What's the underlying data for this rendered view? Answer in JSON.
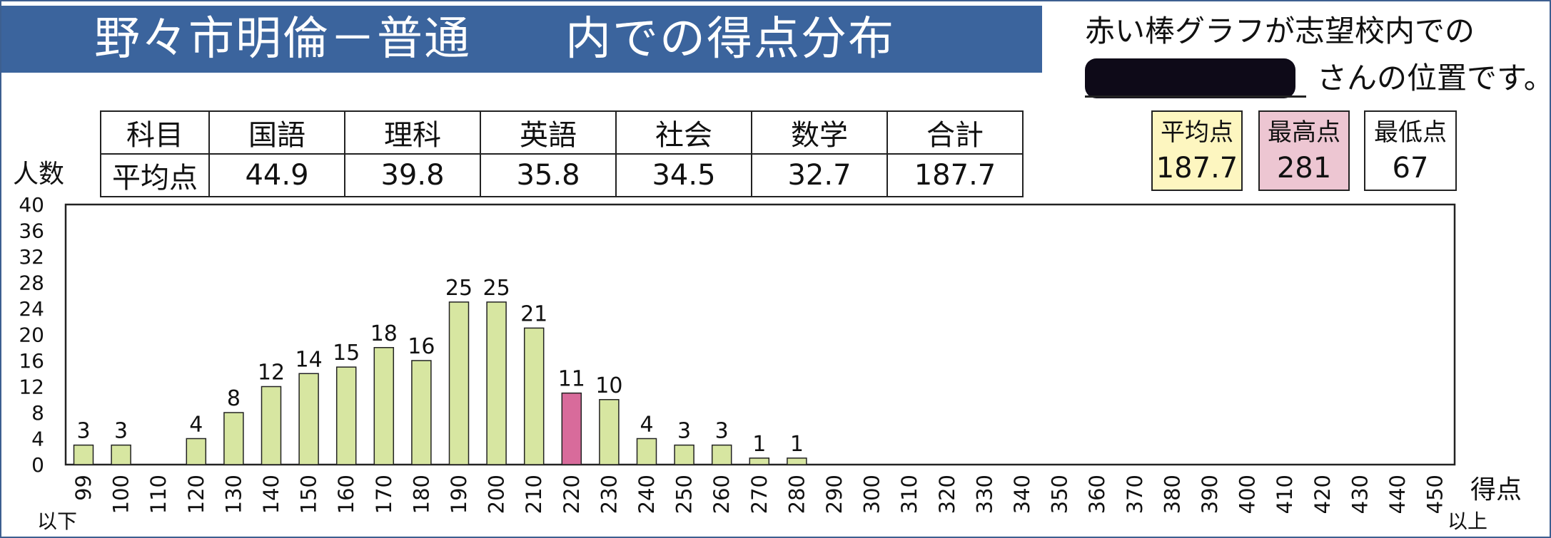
{
  "header": {
    "title": "野々市明倫－普通　　内での得点分布",
    "note_line1": "赤い棒グラフが志望校内での",
    "note_line2": "さんの位置です。"
  },
  "score_table": {
    "headers": [
      "科目",
      "国語",
      "理科",
      "英語",
      "社会",
      "数学",
      "合計"
    ],
    "row": [
      "平均点",
      "44.9",
      "39.8",
      "35.8",
      "34.5",
      "32.7",
      "187.7"
    ]
  },
  "stats": {
    "avg_label": "平均点",
    "avg_value": "187.7",
    "max_label": "最高点",
    "max_value": "281",
    "min_label": "最低点",
    "min_value": "67"
  },
  "colors": {
    "bar": "#d7e6a1",
    "highlight": "#d86b9b",
    "title_bg": "#3b649d"
  },
  "chart_data": {
    "type": "bar",
    "ylabel": "人数",
    "xlabel": "得点",
    "x_low_note": "以下",
    "x_high_note": "以上",
    "ylim": [
      0,
      40
    ],
    "yticks": [
      0,
      4,
      8,
      12,
      16,
      20,
      24,
      28,
      32,
      36,
      40
    ],
    "categories": [
      "99",
      "100",
      "110",
      "120",
      "130",
      "140",
      "150",
      "160",
      "170",
      "180",
      "190",
      "200",
      "210",
      "220",
      "230",
      "240",
      "250",
      "260",
      "270",
      "280",
      "290",
      "300",
      "310",
      "320",
      "330",
      "340",
      "350",
      "360",
      "370",
      "380",
      "390",
      "400",
      "410",
      "420",
      "430",
      "440",
      "450"
    ],
    "values": [
      3,
      3,
      0,
      4,
      8,
      12,
      14,
      15,
      18,
      16,
      25,
      25,
      21,
      11,
      10,
      4,
      3,
      3,
      1,
      1,
      0,
      0,
      0,
      0,
      0,
      0,
      0,
      0,
      0,
      0,
      0,
      0,
      0,
      0,
      0,
      0,
      0
    ],
    "highlight_category": "220",
    "grid": false
  }
}
